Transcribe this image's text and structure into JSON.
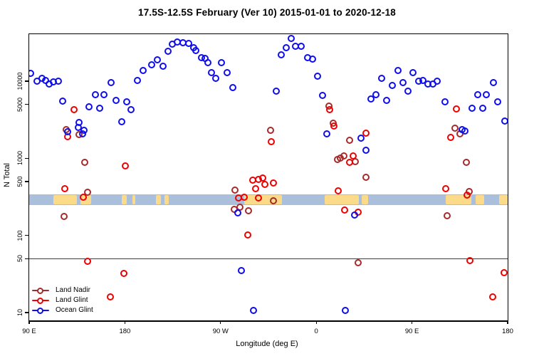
{
  "title": "17.5S-12.5S February (Ver 10)   2015-01-01 to 2020-12-18",
  "chart_data": {
    "type": "scatter",
    "title": "17.5S-12.5S February (Ver 10)   2015-01-01 to 2020-12-18",
    "xlabel": "Longitude (deg E)",
    "ylabel": "N Total",
    "y_scale": "log10",
    "y_ticks": [
      {
        "v": 10,
        "label": "10"
      },
      {
        "v": 50,
        "label": "50"
      },
      {
        "v": 100,
        "label": "100"
      },
      {
        "v": 500,
        "label": "500"
      },
      {
        "v": 1000,
        "label": "1000"
      },
      {
        "v": 5000,
        "label": "5000"
      },
      {
        "v": 10000,
        "label": "10000"
      }
    ],
    "x_ticks": [
      {
        "deg": 0,
        "label": "90 E"
      },
      {
        "deg": 90,
        "label": "180"
      },
      {
        "deg": 180,
        "label": "90 W"
      },
      {
        "deg": 270,
        "label": "0"
      },
      {
        "deg": 360,
        "label": "90 E"
      },
      {
        "deg": 450,
        "label": "180"
      }
    ],
    "x_axis_span_deg": 450,
    "reference_line_value": 50,
    "map_band": {
      "ocean_color": "#A9BFDB",
      "land_color": "#FBDB8A",
      "band_value_range": [
        248,
        340
      ],
      "land_patches_deg": [
        [
          23,
          45
        ],
        [
          48,
          58
        ],
        [
          87,
          92
        ],
        [
          97,
          100
        ],
        [
          119,
          124
        ],
        [
          127,
          131
        ],
        [
          202,
          238
        ],
        [
          278,
          310
        ],
        [
          313,
          319
        ],
        [
          392,
          416
        ],
        [
          420,
          428
        ],
        [
          442,
          450
        ]
      ]
    },
    "series": [
      {
        "name": "Land Nadir",
        "color": "#A52A2A",
        "points": [
          [
            32.8,
            176
          ],
          [
            34.8,
            2350
          ],
          [
            46.9,
            2030
          ],
          [
            52.2,
            886
          ],
          [
            54.9,
            364
          ],
          [
            192.8,
            220
          ],
          [
            193.5,
            390
          ],
          [
            198.2,
            230
          ],
          [
            206.3,
            210
          ],
          [
            227,
            2300
          ],
          [
            229.7,
            281
          ],
          [
            281.9,
            4760
          ],
          [
            285.9,
            2880
          ],
          [
            290,
            964
          ],
          [
            292.6,
            1005
          ],
          [
            296,
            1070
          ],
          [
            301.4,
            1720
          ],
          [
            306.7,
            905
          ],
          [
            309.4,
            44
          ],
          [
            316.7,
            570
          ],
          [
            393,
            180
          ],
          [
            400.4,
            2450
          ],
          [
            405.1,
            2070
          ],
          [
            411.2,
            886
          ],
          [
            413.8,
            370
          ]
        ]
      },
      {
        "name": "Land Glint",
        "color": "#EE0000",
        "points": [
          [
            33.5,
            405
          ],
          [
            36.2,
            1900
          ],
          [
            42.2,
            4280
          ],
          [
            50.9,
            313
          ],
          [
            54.9,
            46
          ],
          [
            76.3,
            16
          ],
          [
            89.1,
            32
          ],
          [
            90.4,
            800
          ],
          [
            196.9,
            306
          ],
          [
            202.2,
            313
          ],
          [
            205.6,
            101
          ],
          [
            210.3,
            524
          ],
          [
            212.9,
            405
          ],
          [
            215.6,
            535
          ],
          [
            215.6,
            306
          ],
          [
            219.6,
            558
          ],
          [
            221.6,
            461
          ],
          [
            227.7,
            1640
          ],
          [
            229.7,
            482
          ],
          [
            282.6,
            4280
          ],
          [
            286.6,
            2630
          ],
          [
            290.6,
            379
          ],
          [
            296.6,
            212
          ],
          [
            301.4,
            887
          ],
          [
            304.7,
            1070
          ],
          [
            309.4,
            200
          ],
          [
            316.7,
            2130
          ],
          [
            391.7,
            405
          ],
          [
            396.4,
            1860
          ],
          [
            401.8,
            4370
          ],
          [
            411.8,
            330
          ],
          [
            414.5,
            47
          ],
          [
            435.9,
            16
          ],
          [
            446.6,
            33
          ]
        ]
      },
      {
        "name": "Ocean Glint",
        "color": "#0D0DEE",
        "points": [
          [
            1.3,
            12600
          ],
          [
            7.4,
            10000
          ],
          [
            12.1,
            10900
          ],
          [
            15.4,
            10300
          ],
          [
            18.8,
            9200
          ],
          [
            22.8,
            9850
          ],
          [
            27.5,
            10000
          ],
          [
            31.5,
            5550
          ],
          [
            36.2,
            2220
          ],
          [
            46.2,
            2520
          ],
          [
            46.9,
            2930
          ],
          [
            50.2,
            2080
          ],
          [
            51.6,
            2300
          ],
          [
            56.3,
            4650
          ],
          [
            62.3,
            6700
          ],
          [
            66.3,
            4460
          ],
          [
            70.3,
            6700
          ],
          [
            77,
            9600
          ],
          [
            81.7,
            5660
          ],
          [
            87.1,
            2990
          ],
          [
            91.7,
            5450
          ],
          [
            95.8,
            4280
          ],
          [
            101.8,
            10200
          ],
          [
            107.1,
            13800
          ],
          [
            115.2,
            16400
          ],
          [
            120.5,
            19100
          ],
          [
            125.9,
            15500
          ],
          [
            130.6,
            24600
          ],
          [
            134.6,
            30500
          ],
          [
            139.3,
            32400
          ],
          [
            144.6,
            31800
          ],
          [
            150,
            31100
          ],
          [
            154.7,
            27300
          ],
          [
            156.7,
            25100
          ],
          [
            162,
            20300
          ],
          [
            165.4,
            19900
          ],
          [
            168,
            17200
          ],
          [
            171.4,
            12800
          ],
          [
            175.4,
            10800
          ],
          [
            180.8,
            17200
          ],
          [
            186.2,
            12800
          ],
          [
            191.5,
            8300
          ],
          [
            196.2,
            196
          ],
          [
            199.5,
            35
          ],
          [
            210.9,
            10.7
          ],
          [
            232.3,
            7450
          ],
          [
            237,
            22000
          ],
          [
            241.7,
            27300
          ],
          [
            246.4,
            36100
          ],
          [
            250.4,
            28600
          ],
          [
            255.8,
            28600
          ],
          [
            261.8,
            20300
          ],
          [
            266.5,
            19500
          ],
          [
            271.2,
            11500
          ],
          [
            275.9,
            6600
          ],
          [
            279.9,
            2080
          ],
          [
            297.3,
            10.7
          ],
          [
            306,
            183
          ],
          [
            312,
            1840
          ],
          [
            316.7,
            1280
          ],
          [
            321.4,
            5920
          ],
          [
            326.1,
            6700
          ],
          [
            331.4,
            10900
          ],
          [
            336.1,
            5660
          ],
          [
            341.5,
            8840
          ],
          [
            346.9,
            13800
          ],
          [
            351.5,
            9600
          ],
          [
            356.2,
            7450
          ],
          [
            360.9,
            12800
          ],
          [
            366.3,
            10000
          ],
          [
            370.3,
            10200
          ],
          [
            375,
            9200
          ],
          [
            379.7,
            9200
          ],
          [
            383.7,
            10000
          ],
          [
            391.1,
            5400
          ],
          [
            407.1,
            2360
          ],
          [
            409.8,
            2260
          ],
          [
            416.5,
            4460
          ],
          [
            421.8,
            6700
          ],
          [
            426.5,
            4460
          ],
          [
            429.9,
            6700
          ],
          [
            436.6,
            9600
          ],
          [
            440.7,
            5400
          ],
          [
            447.3,
            3070
          ]
        ]
      }
    ],
    "legend_position": "bottom-left"
  },
  "legend": {
    "items": [
      {
        "label": "Land Nadir",
        "color": "#A52A2A"
      },
      {
        "label": "Land Glint",
        "color": "#EE0000"
      },
      {
        "label": "Ocean Glint",
        "color": "#0D0DEE"
      }
    ]
  }
}
